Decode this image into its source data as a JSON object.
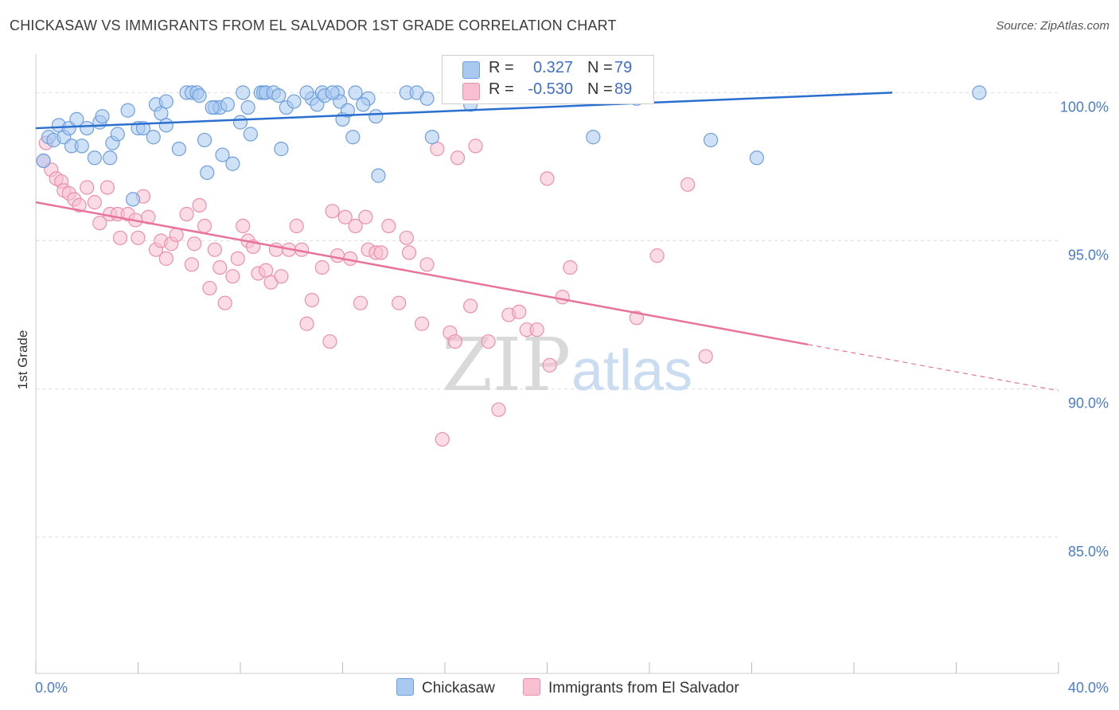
{
  "header": {
    "title": "CHICKASAW VS IMMIGRANTS FROM EL SALVADOR 1ST GRADE CORRELATION CHART",
    "source": "Source: ZipAtlas.com"
  },
  "watermark": {
    "part1": "ZIP",
    "part2": "atlas"
  },
  "legend": {
    "rows": [
      {
        "r_label": "R =",
        "r_value": "0.327",
        "n_label": "N =",
        "n_value": "79"
      },
      {
        "r_label": "R =",
        "r_value": "-0.530",
        "n_label": "N =",
        "n_value": "89"
      }
    ]
  },
  "bottom_legend": {
    "items": [
      "Chickasaw",
      "Immigrants from El Salvador"
    ]
  },
  "colors": {
    "blue_fill": "#a8c8f0",
    "blue_stroke": "#6f9fdc",
    "blue_line": "#2a6fcf",
    "pink_fill": "#f7bfd0",
    "pink_stroke": "#ec8fae",
    "pink_line": "#e8739c",
    "tick_text": "#4a7cc9",
    "grid": "#dedede"
  },
  "chart_data": {
    "type": "scatter",
    "title": "CHICKASAW VS IMMIGRANTS FROM EL SALVADOR 1ST GRADE CORRELATION CHART",
    "xlabel": "",
    "ylabel": "1st Grade",
    "xlim": [
      0,
      40
    ],
    "ylim": [
      80.4,
      101.3
    ],
    "x_tick_labels": [
      "0.0%",
      "40.0%"
    ],
    "y_ticks": [
      100,
      95,
      90,
      85
    ],
    "y_tick_labels": [
      "100.0%",
      "95.0%",
      "90.0%",
      "85.0%"
    ],
    "grid": true,
    "legend_position": "top-center",
    "series": [
      {
        "name": "Chickasaw",
        "color": "#a8c8f0",
        "trend": {
          "x": [
            0,
            33.5
          ],
          "y": [
            98.8,
            100.0
          ],
          "dashed_to_x": null
        },
        "points": [
          [
            0.3,
            97.7
          ],
          [
            0.5,
            98.5
          ],
          [
            0.7,
            98.4
          ],
          [
            0.9,
            98.9
          ],
          [
            1.1,
            98.5
          ],
          [
            1.3,
            98.8
          ],
          [
            1.4,
            98.2
          ],
          [
            1.6,
            99.1
          ],
          [
            1.8,
            98.2
          ],
          [
            2.0,
            98.8
          ],
          [
            2.3,
            97.8
          ],
          [
            2.5,
            99.0
          ],
          [
            2.6,
            99.2
          ],
          [
            2.9,
            97.8
          ],
          [
            3.0,
            98.3
          ],
          [
            3.2,
            98.6
          ],
          [
            3.6,
            99.4
          ],
          [
            3.8,
            96.4
          ],
          [
            4.0,
            98.8
          ],
          [
            4.2,
            98.8
          ],
          [
            4.6,
            98.5
          ],
          [
            4.7,
            99.6
          ],
          [
            4.9,
            99.3
          ],
          [
            5.1,
            98.9
          ],
          [
            5.1,
            99.7
          ],
          [
            5.6,
            98.1
          ],
          [
            5.9,
            100.0
          ],
          [
            6.1,
            100.0
          ],
          [
            6.3,
            100.0
          ],
          [
            6.4,
            99.9
          ],
          [
            6.6,
            98.4
          ],
          [
            6.7,
            97.3
          ],
          [
            7.0,
            99.5
          ],
          [
            7.2,
            99.5
          ],
          [
            7.5,
            99.6
          ],
          [
            7.3,
            97.9
          ],
          [
            7.7,
            97.6
          ],
          [
            8.0,
            99.0
          ],
          [
            8.1,
            100.0
          ],
          [
            8.3,
            99.5
          ],
          [
            8.4,
            98.6
          ],
          [
            8.8,
            100.0
          ],
          [
            8.9,
            100.0
          ],
          [
            9.0,
            100.0
          ],
          [
            9.3,
            100.0
          ],
          [
            9.6,
            98.1
          ],
          [
            9.8,
            99.5
          ],
          [
            10.1,
            99.7
          ],
          [
            10.8,
            99.8
          ],
          [
            11.0,
            99.6
          ],
          [
            11.2,
            100.0
          ],
          [
            11.3,
            99.9
          ],
          [
            11.8,
            100.0
          ],
          [
            11.9,
            99.7
          ],
          [
            12.0,
            99.1
          ],
          [
            12.2,
            99.4
          ],
          [
            12.4,
            98.5
          ],
          [
            12.5,
            100.0
          ],
          [
            13.0,
            99.8
          ],
          [
            13.3,
            99.2
          ],
          [
            13.4,
            97.2
          ],
          [
            14.5,
            100.0
          ],
          [
            14.9,
            100.0
          ],
          [
            15.3,
            99.8
          ],
          [
            15.5,
            98.5
          ],
          [
            16.8,
            100.0
          ],
          [
            17.0,
            99.6
          ],
          [
            19.4,
            100.0
          ],
          [
            21.1,
            99.9
          ],
          [
            21.8,
            98.5
          ],
          [
            23.5,
            99.8
          ],
          [
            26.4,
            98.4
          ],
          [
            28.2,
            97.8
          ],
          [
            36.9,
            100.0
          ],
          [
            6.9,
            99.5
          ],
          [
            10.6,
            100.0
          ],
          [
            11.6,
            100.0
          ],
          [
            12.8,
            99.6
          ],
          [
            9.5,
            99.9
          ]
        ]
      },
      {
        "name": "Immigrants from El Salvador",
        "color": "#f7bfd0",
        "trend": {
          "x": [
            0,
            30.2
          ],
          "y": [
            96.3,
            91.5
          ],
          "dashed_to_x": 40
        },
        "points": [
          [
            0.3,
            97.7
          ],
          [
            0.4,
            98.3
          ],
          [
            0.6,
            97.4
          ],
          [
            0.8,
            97.1
          ],
          [
            1.0,
            97.0
          ],
          [
            1.1,
            96.7
          ],
          [
            1.3,
            96.6
          ],
          [
            1.5,
            96.4
          ],
          [
            1.7,
            96.2
          ],
          [
            2.0,
            96.8
          ],
          [
            2.3,
            96.3
          ],
          [
            2.5,
            95.6
          ],
          [
            2.8,
            96.8
          ],
          [
            2.9,
            95.9
          ],
          [
            3.2,
            95.9
          ],
          [
            3.3,
            95.1
          ],
          [
            3.6,
            95.9
          ],
          [
            3.9,
            95.7
          ],
          [
            4.0,
            95.1
          ],
          [
            4.2,
            96.5
          ],
          [
            4.4,
            95.8
          ],
          [
            4.7,
            94.7
          ],
          [
            4.9,
            95.0
          ],
          [
            5.1,
            94.4
          ],
          [
            5.3,
            94.9
          ],
          [
            5.5,
            95.2
          ],
          [
            5.9,
            95.9
          ],
          [
            6.1,
            94.2
          ],
          [
            6.2,
            94.9
          ],
          [
            6.4,
            96.2
          ],
          [
            6.6,
            95.5
          ],
          [
            6.8,
            93.4
          ],
          [
            7.0,
            94.7
          ],
          [
            7.2,
            94.1
          ],
          [
            7.4,
            92.9
          ],
          [
            7.7,
            93.8
          ],
          [
            7.9,
            94.4
          ],
          [
            8.1,
            95.5
          ],
          [
            8.3,
            95.0
          ],
          [
            8.5,
            94.8
          ],
          [
            8.7,
            93.9
          ],
          [
            9.0,
            94.0
          ],
          [
            9.2,
            93.6
          ],
          [
            9.4,
            94.7
          ],
          [
            9.6,
            93.8
          ],
          [
            9.9,
            94.7
          ],
          [
            10.2,
            95.5
          ],
          [
            10.4,
            94.7
          ],
          [
            10.6,
            92.2
          ],
          [
            10.8,
            93.0
          ],
          [
            11.2,
            94.1
          ],
          [
            11.5,
            91.6
          ],
          [
            11.6,
            96.0
          ],
          [
            11.8,
            94.5
          ],
          [
            12.1,
            95.8
          ],
          [
            12.3,
            94.4
          ],
          [
            12.5,
            95.5
          ],
          [
            12.7,
            92.9
          ],
          [
            12.9,
            95.8
          ],
          [
            13.0,
            94.7
          ],
          [
            13.3,
            94.6
          ],
          [
            13.5,
            94.6
          ],
          [
            13.8,
            95.5
          ],
          [
            14.2,
            92.9
          ],
          [
            14.5,
            95.1
          ],
          [
            14.6,
            94.6
          ],
          [
            15.1,
            92.2
          ],
          [
            15.3,
            94.2
          ],
          [
            15.7,
            98.1
          ],
          [
            15.9,
            88.3
          ],
          [
            16.2,
            91.9
          ],
          [
            16.4,
            91.6
          ],
          [
            16.5,
            97.8
          ],
          [
            17.0,
            92.8
          ],
          [
            17.2,
            98.2
          ],
          [
            17.7,
            91.6
          ],
          [
            18.1,
            89.3
          ],
          [
            18.5,
            92.5
          ],
          [
            18.9,
            92.6
          ],
          [
            19.2,
            92.0
          ],
          [
            19.6,
            92.0
          ],
          [
            20.0,
            97.1
          ],
          [
            20.1,
            90.8
          ],
          [
            20.6,
            93.1
          ],
          [
            20.9,
            94.1
          ],
          [
            23.5,
            92.4
          ],
          [
            24.3,
            94.5
          ],
          [
            25.5,
            96.9
          ],
          [
            26.2,
            91.1
          ]
        ]
      }
    ]
  }
}
